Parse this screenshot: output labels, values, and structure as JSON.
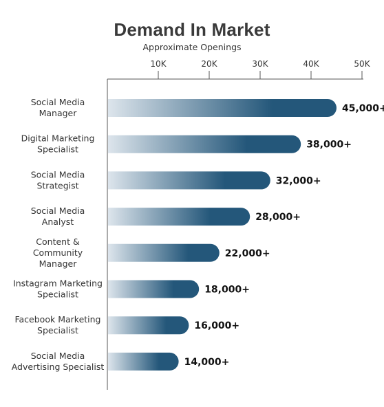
{
  "chart_data": {
    "type": "bar",
    "orientation": "horizontal",
    "title": "Demand In Market",
    "subtitle": "Approximate Openings",
    "xlabel": "",
    "ylabel": "",
    "x_ticks": [
      10000,
      20000,
      30000,
      40000,
      50000
    ],
    "x_tick_labels": [
      "10K",
      "20K",
      "30K",
      "40K",
      "50K"
    ],
    "xlim": [
      0,
      55000
    ],
    "axis_position": "top",
    "grid": false,
    "categories": [
      "Social Media Manager",
      "Digital Marketing Specialist",
      "Social Media Strategist",
      "Social Media Analyst",
      "Content & Community Manager",
      "Instagram Marketing Specialist",
      "Facebook Marketing Specialist",
      "Social Media Advertising Specialist"
    ],
    "category_lines": [
      [
        "Social Media",
        "Manager"
      ],
      [
        "Digital Marketing",
        "Specialist"
      ],
      [
        "Social Media",
        "Strategist"
      ],
      [
        "Social Media",
        "Analyst"
      ],
      [
        "Content &",
        "Community",
        "Manager"
      ],
      [
        "Instagram Marketing",
        "Specialist"
      ],
      [
        "Facebook Marketing",
        "Specialist"
      ],
      [
        "Social Media",
        "Advertising Specialist"
      ]
    ],
    "values": [
      45000,
      38000,
      32000,
      28000,
      22000,
      18000,
      16000,
      14000
    ],
    "data_labels": [
      "45,000+",
      "38,000+",
      "32,000+",
      "28,000+",
      "22,000+",
      "18,000+",
      "16,000+",
      "14,000+"
    ],
    "colors": {
      "bar_start": "#dde5ec",
      "bar_end": "#24577a",
      "axis": "#555555"
    }
  }
}
